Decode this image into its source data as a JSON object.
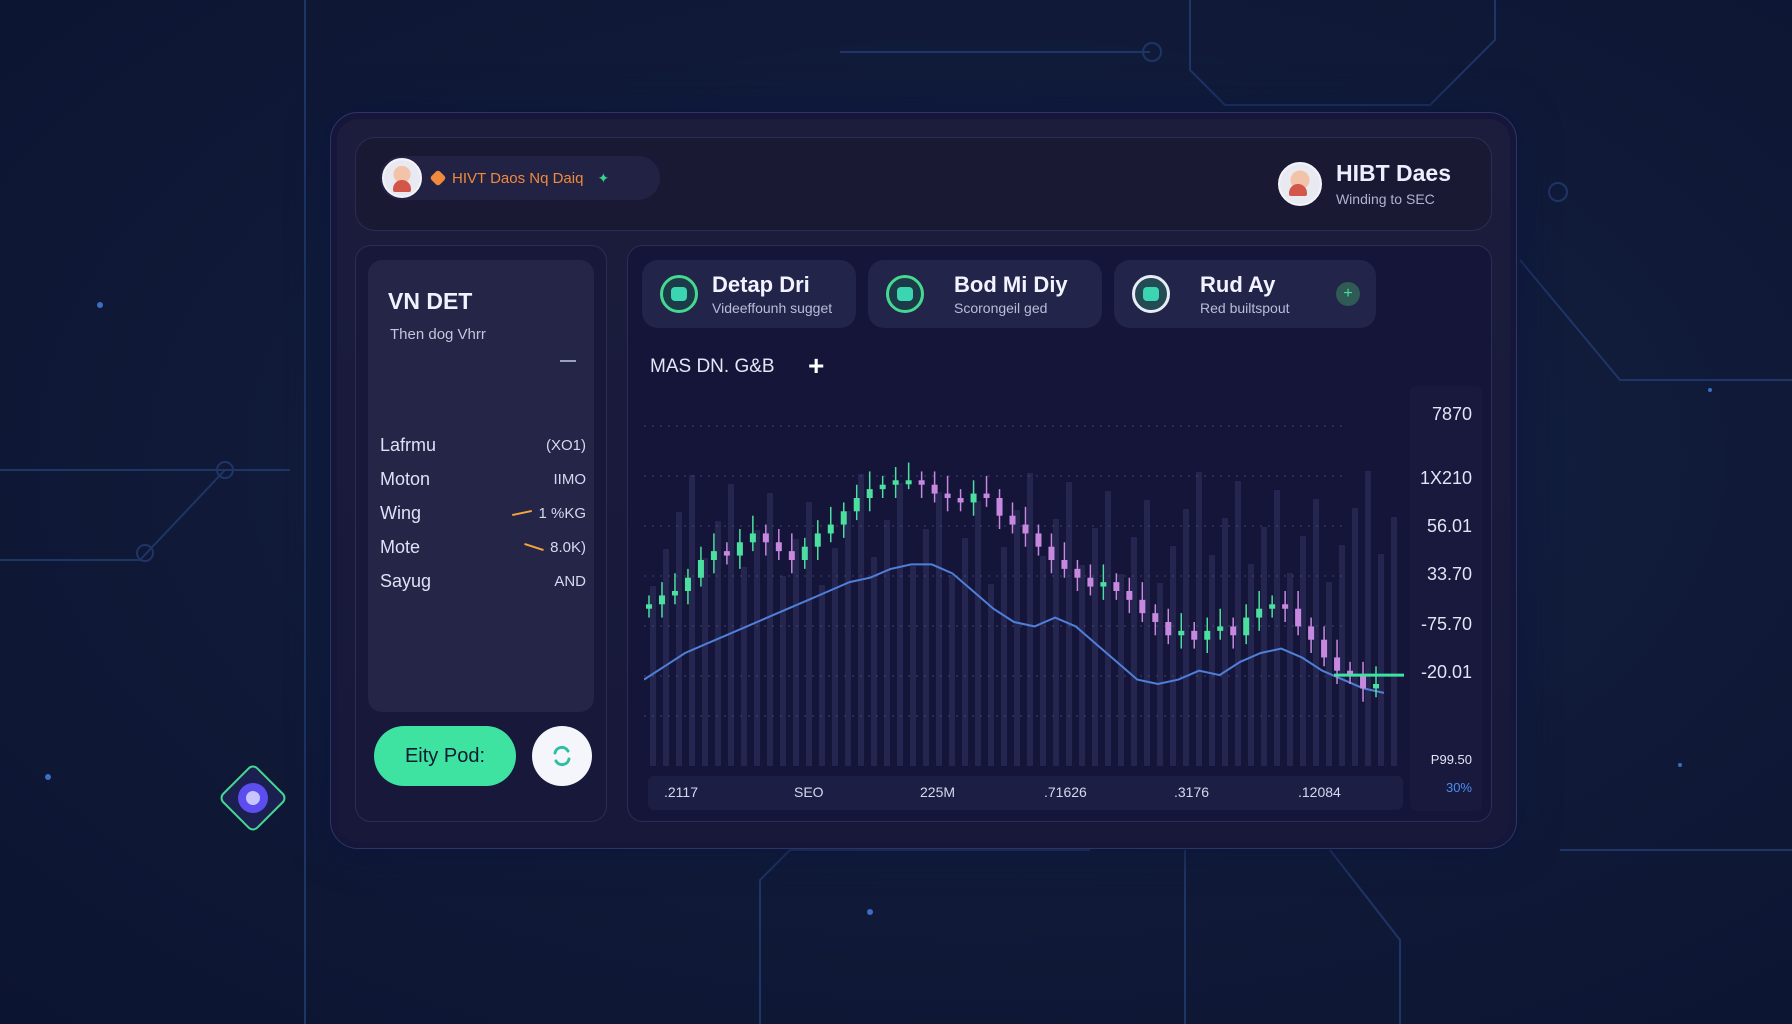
{
  "header": {
    "pill_text": "HIVT Daos Nq Daiq",
    "user_name": "HIBT Daes",
    "user_sub": "Winding to SEC"
  },
  "sidebar": {
    "title": "VN DET",
    "subtitle": "Then dog Vhrr",
    "rows": [
      {
        "label": "Lafrmu",
        "value": "(XO1)"
      },
      {
        "label": "Moton",
        "value": "IIMO"
      },
      {
        "label": "Wing",
        "value": "1 %KG"
      },
      {
        "label": "Mote",
        "value": "8.0K)"
      },
      {
        "label": "Sayug",
        "value": "AND"
      }
    ],
    "primary_button": "Eity Pod:"
  },
  "cards": [
    {
      "title": "Detap Dri",
      "subtitle": "Videeffounh sugget"
    },
    {
      "title": "Bod Mi Diy",
      "subtitle": "Scorongeil ged"
    },
    {
      "title": "Rud Ay",
      "subtitle": "Red builtspout"
    }
  ],
  "chart_panel": {
    "label": "MAS DN. G&B"
  },
  "chart_data": {
    "type": "candlestick",
    "y_tick_labels": [
      "7870",
      "1X210",
      "56.01",
      "33.70",
      "-75.70",
      "-20.01",
      "P99.50",
      "30%"
    ],
    "x_tick_labels": [
      ".2117",
      "SEO",
      "225M",
      ".71626",
      ".3176",
      ".12084"
    ],
    "close_series": [
      52,
      54,
      55,
      58,
      62,
      64,
      63,
      66,
      68,
      66,
      64,
      62,
      65,
      68,
      70,
      73,
      76,
      78,
      79,
      80,
      80,
      79,
      77,
      76,
      75,
      77,
      76,
      72,
      70,
      68,
      65,
      62,
      60,
      58,
      56,
      57,
      55,
      53,
      50,
      48,
      45,
      46,
      44,
      46,
      47,
      45,
      49,
      51,
      52,
      51,
      47,
      44,
      40,
      37,
      36,
      33,
      34
    ],
    "trend_series": [
      30,
      33,
      36,
      38,
      40,
      42,
      44,
      46,
      48,
      50,
      52,
      53,
      55,
      56,
      56,
      54,
      50,
      46,
      43,
      42,
      44,
      42,
      38,
      34,
      30,
      29,
      30,
      32,
      31,
      34,
      36,
      37,
      35,
      32,
      30,
      28,
      27
    ]
  },
  "colors": {
    "bull": "#4be0a0",
    "bear": "#c789e0",
    "trend": "#4f7fd8",
    "accent": "#3fe3a1"
  }
}
